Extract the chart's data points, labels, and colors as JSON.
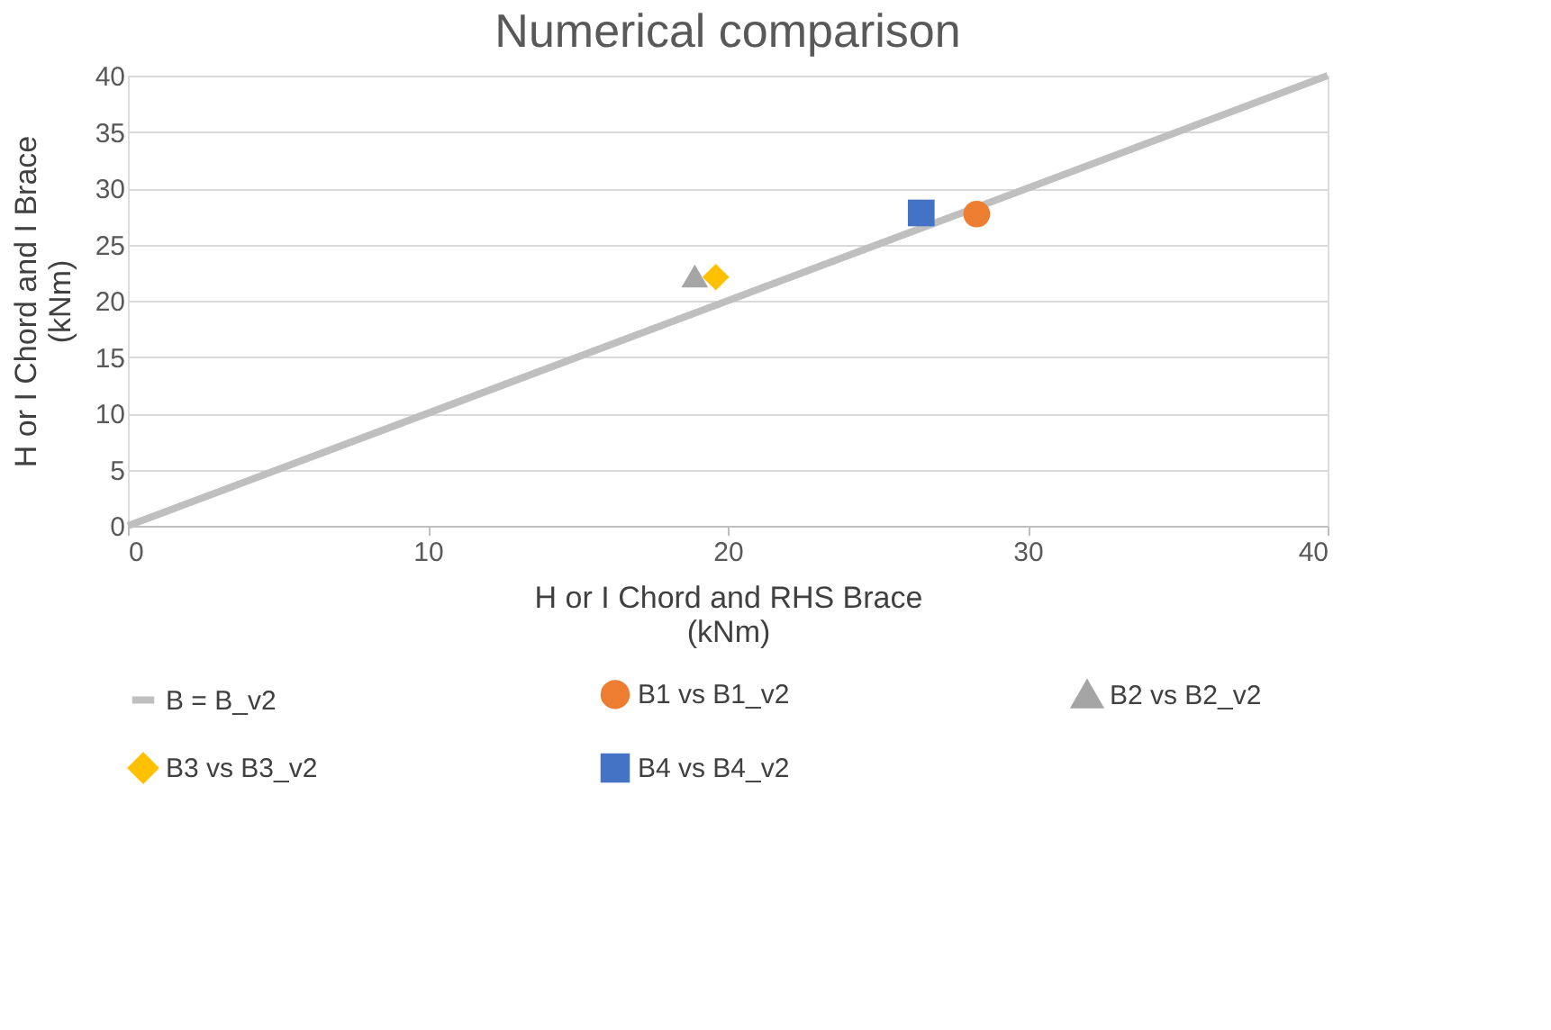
{
  "chart_data": {
    "type": "scatter",
    "title": "Numerical comparison",
    "xlabel": "H or I Chord and RHS Brace (kNm)",
    "ylabel": "H or I Chord and I Brace (kNm)",
    "xlim": [
      0,
      40
    ],
    "xticks": [
      0,
      10,
      20,
      30,
      40
    ],
    "ylim": [
      0,
      40
    ],
    "yticks": [
      0,
      5,
      10,
      15,
      20,
      25,
      30,
      35,
      40
    ],
    "grid": "y",
    "legend": "bottom",
    "series": [
      {
        "name": "B = B_v2",
        "type": "line",
        "color": "#bfbfbf",
        "x": [
          0,
          40
        ],
        "values": [
          0,
          40
        ],
        "marker": "none"
      },
      {
        "name": "B1 vs B1_v2",
        "color": "#ed7d31",
        "x": [
          28.3
        ],
        "values": [
          27.7
        ],
        "marker": "circle"
      },
      {
        "name": "B2 vs B2_v2",
        "color": "#a5a5a5",
        "x": [
          18.9
        ],
        "values": [
          22.2
        ],
        "marker": "triangle"
      },
      {
        "name": "B3 vs B3_v2",
        "color": "#ffc000",
        "x": [
          19.6
        ],
        "values": [
          22.1
        ],
        "marker": "diamond"
      },
      {
        "name": "B4 vs B4_v2",
        "color": "#4472c4",
        "x": [
          26.45
        ],
        "values": [
          27.8
        ],
        "marker": "square"
      }
    ]
  }
}
